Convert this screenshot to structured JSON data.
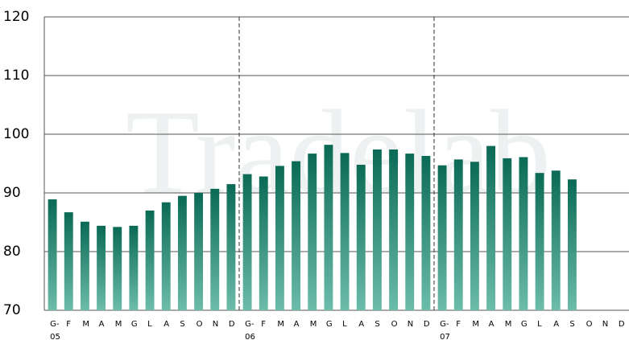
{
  "chart_data": {
    "type": "bar",
    "watermark": "Tradelab",
    "categories": [
      "G-",
      "F",
      "M",
      "A",
      "M",
      "G",
      "L",
      "A",
      "S",
      "O",
      "N",
      "D",
      "G-",
      "F",
      "M",
      "A",
      "M",
      "G",
      "L",
      "A",
      "S",
      "O",
      "N",
      "D",
      "G-",
      "F",
      "M",
      "A",
      "M",
      "G",
      "L",
      "A",
      "S",
      "O",
      "N",
      "D"
    ],
    "sublabels": [
      "05",
      null,
      null,
      null,
      null,
      null,
      null,
      null,
      null,
      null,
      null,
      null,
      "06",
      null,
      null,
      null,
      null,
      null,
      null,
      null,
      null,
      null,
      null,
      null,
      "07",
      null,
      null,
      null,
      null,
      null,
      null,
      null,
      null,
      null,
      null,
      null
    ],
    "values": [
      88.9,
      86.7,
      85.1,
      84.4,
      84.2,
      84.4,
      87.0,
      88.4,
      89.5,
      90.0,
      90.7,
      91.5,
      93.2,
      92.8,
      94.6,
      95.4,
      96.7,
      98.2,
      96.8,
      94.8,
      97.4,
      97.4,
      96.7,
      96.3,
      94.7,
      95.7,
      95.3,
      98.0,
      95.9,
      96.1,
      93.4,
      93.8,
      92.3,
      null,
      null,
      null
    ],
    "color": "#0d7a62",
    "ylim": [
      70,
      120
    ],
    "yticks": [
      70,
      80,
      90,
      100,
      110,
      120
    ],
    "grid": true
  }
}
